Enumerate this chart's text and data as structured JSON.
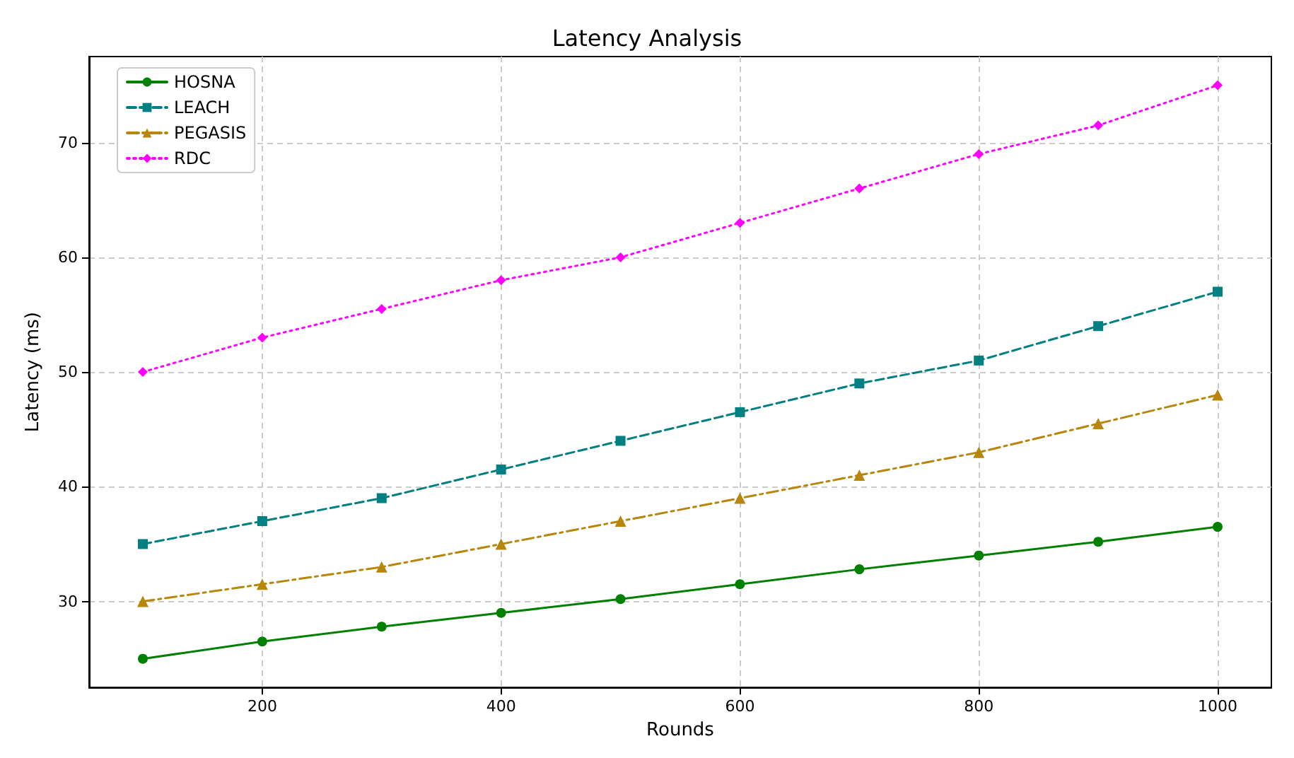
{
  "chart_data": {
    "type": "line",
    "title": "Latency Analysis",
    "xlabel": "Rounds",
    "ylabel": "Latency (ms)",
    "x": [
      100,
      200,
      300,
      400,
      500,
      600,
      700,
      800,
      900,
      1000
    ],
    "series": [
      {
        "name": "HOSNA",
        "color": "#008000",
        "marker": "circle",
        "line_style": "solid",
        "values": [
          25,
          26.5,
          27.8,
          29,
          30.2,
          31.5,
          32.8,
          34,
          35.2,
          36.5
        ]
      },
      {
        "name": "LEACH",
        "color": "#008080",
        "marker": "square",
        "line_style": "dashed",
        "values": [
          35,
          37,
          39,
          41.5,
          44,
          46.5,
          49,
          51,
          54,
          57
        ]
      },
      {
        "name": "PEGASIS",
        "color": "#b8860b",
        "marker": "triangle",
        "line_style": "dashdot",
        "values": [
          30,
          31.5,
          33,
          35,
          37,
          39,
          41,
          43,
          45.5,
          48
        ]
      },
      {
        "name": "RDC",
        "color": "#ff00ff",
        "marker": "diamond",
        "line_style": "dotted",
        "values": [
          50,
          53,
          55.5,
          58,
          60,
          63,
          66,
          69,
          71.5,
          75
        ]
      }
    ],
    "xlim": [
      55,
      1045
    ],
    "xticks": [
      200,
      400,
      600,
      800,
      1000
    ],
    "ylim": [
      22.5,
      77.5
    ],
    "yticks": [
      30,
      40,
      50,
      60,
      70
    ],
    "grid": true,
    "legend": "top left"
  }
}
